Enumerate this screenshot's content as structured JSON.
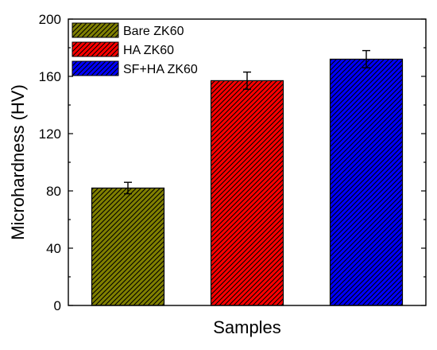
{
  "chart_data": {
    "type": "bar",
    "title": "",
    "xlabel": "Samples",
    "ylabel": "Microhardness (HV)",
    "ylim": [
      0,
      200
    ],
    "yticks": [
      0,
      40,
      80,
      120,
      160,
      200
    ],
    "grid": false,
    "legend_position": "top-left",
    "series": [
      {
        "name": "Bare ZK60",
        "value": 82,
        "error": 4,
        "color": "#808000",
        "pattern": "diagonal-hatch"
      },
      {
        "name": "HA ZK60",
        "value": 157,
        "error": 6,
        "color": "#ff0000",
        "pattern": "diagonal-hatch"
      },
      {
        "name": "SF+HA ZK60",
        "value": 172,
        "error": 6,
        "color": "#0000ff",
        "pattern": "diagonal-hatch"
      }
    ]
  }
}
